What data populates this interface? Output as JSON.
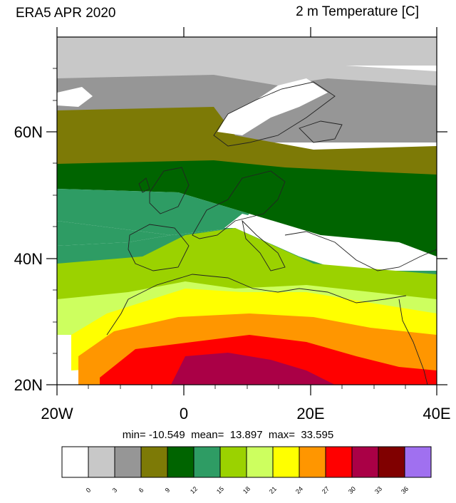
{
  "title_left": "ERA5 APR 2020",
  "title_right": "2 m Temperature [C]",
  "y_axis": {
    "ticks": [
      "20N",
      "40N",
      "60N"
    ],
    "range": [
      20,
      74
    ],
    "values": [
      20,
      40,
      60
    ]
  },
  "x_axis": {
    "ticks": [
      "20W",
      "0",
      "20E",
      "40E"
    ],
    "range": [
      -20,
      40
    ],
    "values": [
      -20,
      0,
      20,
      40
    ]
  },
  "stats": "min= -10.549  mean=  13.897  max=  33.595",
  "colorbar": {
    "levels": [
      "0",
      "3",
      "6",
      "9",
      "12",
      "15",
      "18",
      "21",
      "24",
      "27",
      "30",
      "33",
      "36"
    ],
    "colors": [
      "#ffffff",
      "#c8c8c8",
      "#969696",
      "#7d7a06",
      "#006400",
      "#2e9c64",
      "#9bd200",
      "#cdff5f",
      "#ffff00",
      "#ff9600",
      "#ff0000",
      "#aa0046",
      "#800000",
      "#a070f0"
    ]
  },
  "colors": {
    "white": "#ffffff",
    "lgray": "#c8c8c8",
    "gray": "#969696",
    "olive": "#7d7a06",
    "dgreen": "#006400",
    "mgreen": "#2e9c64",
    "lime": "#9bd200",
    "lyellowgreen": "#cdff5f",
    "yellow": "#ffff00",
    "orange": "#ff9600",
    "red": "#ff0000",
    "crimson": "#aa0046",
    "darkred": "#800000"
  }
}
